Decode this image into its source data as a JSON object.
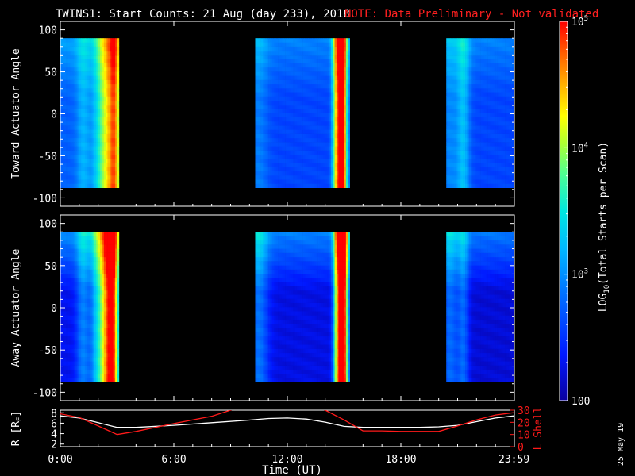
{
  "header": {
    "title": "TWINS1: Start Counts: 21 Aug (day 233), 2018",
    "note": "NOTE: Data Preliminary - Not validated"
  },
  "datestamp": "25 May 19",
  "colors": {
    "background": "#000000",
    "axes": "#ffffff",
    "note": "#ff2020",
    "r_line": "#ffffff",
    "l_line": "#ff1a1a"
  },
  "colorbar": {
    "label": "LOG10(Total Starts per Scan)",
    "label_main": "LOG",
    "label_sub": "10",
    "label_rest": "(Total Starts per Scan)",
    "range_log": [
      2,
      5
    ],
    "ticks": [
      {
        "log": 5,
        "label": "10",
        "exp": "5"
      },
      {
        "log": 4,
        "label": "10",
        "exp": "4"
      },
      {
        "log": 3,
        "label": "10",
        "exp": "3"
      },
      {
        "log": 2,
        "label": "100",
        "exp": ""
      }
    ],
    "stops": [
      {
        "t": 0.0,
        "c": "#0a00a0"
      },
      {
        "t": 0.12,
        "c": "#0018ff"
      },
      {
        "t": 0.28,
        "c": "#0070ff"
      },
      {
        "t": 0.4,
        "c": "#00b8ff"
      },
      {
        "t": 0.5,
        "c": "#00e8e0"
      },
      {
        "t": 0.6,
        "c": "#50ff90"
      },
      {
        "t": 0.68,
        "c": "#b0ff30"
      },
      {
        "t": 0.75,
        "c": "#ffff00"
      },
      {
        "t": 0.85,
        "c": "#ffa000"
      },
      {
        "t": 0.93,
        "c": "#ff5000"
      },
      {
        "t": 1.0,
        "c": "#ff0000"
      }
    ]
  },
  "xaxis": {
    "label": "Time (UT)",
    "range_hours": [
      0,
      24
    ],
    "ticks": [
      {
        "h": 0,
        "label": "0:00"
      },
      {
        "h": 6,
        "label": "6:00"
      },
      {
        "h": 12,
        "label": "12:00"
      },
      {
        "h": 18,
        "label": "18:00"
      },
      {
        "h": 23.983,
        "label": "23:59"
      }
    ]
  },
  "chart_data": [
    {
      "type": "heatmap",
      "ylabel": "Toward Actuator Angle",
      "ylim": [
        -110,
        110
      ],
      "yticks": [
        100,
        50,
        0,
        -50,
        -100
      ],
      "angle_range": [
        -88,
        90
      ],
      "value_units": "log10 counts",
      "segments": [
        {
          "t0": 0.0,
          "t1": 3.1,
          "base": 2.75,
          "bumps": [
            [
              1.2,
              0.35,
              0.4
            ],
            [
              2.1,
              0.5,
              0.5
            ],
            [
              2.6,
              0.5,
              1.25
            ],
            [
              2.9,
              0.3,
              1.05
            ]
          ]
        },
        {
          "t0": 10.3,
          "t1": 15.3,
          "base": 2.6,
          "bumps": [
            [
              10.5,
              0.5,
              0.3
            ],
            [
              14.55,
              0.2,
              1.35
            ],
            [
              14.8,
              0.2,
              1.9
            ],
            [
              15.0,
              0.2,
              1.6
            ]
          ]
        },
        {
          "t0": 20.4,
          "t1": 24.0,
          "base": 2.6,
          "bumps": [
            [
              20.6,
              0.5,
              0.35
            ],
            [
              21.3,
              0.35,
              0.6
            ]
          ]
        }
      ],
      "angle_gradient": 0.35
    },
    {
      "type": "heatmap",
      "ylabel": "Away Actuator Angle",
      "ylim": [
        -110,
        110
      ],
      "yticks": [
        100,
        50,
        0,
        -50,
        -100
      ],
      "angle_range": [
        -88,
        90
      ],
      "value_units": "log10 counts",
      "segments": [
        {
          "t0": 0.0,
          "t1": 3.1,
          "base": 2.3,
          "bumps": [
            [
              1.2,
              0.35,
              0.6
            ],
            [
              2.0,
              0.4,
              1.0
            ],
            [
              2.5,
              0.35,
              1.95
            ],
            [
              2.85,
              0.3,
              1.75
            ]
          ]
        },
        {
          "t0": 10.3,
          "t1": 15.3,
          "base": 2.25,
          "bumps": [
            [
              10.5,
              0.5,
              0.6
            ],
            [
              14.6,
              0.2,
              1.6
            ],
            [
              14.85,
              0.2,
              2.2
            ],
            [
              15.05,
              0.2,
              1.8
            ]
          ]
        },
        {
          "t0": 20.4,
          "t1": 24.0,
          "base": 2.2,
          "bumps": [
            [
              20.6,
              0.45,
              0.6
            ],
            [
              21.3,
              0.3,
              0.55
            ]
          ]
        }
      ],
      "angle_gradient": 0.7
    },
    {
      "type": "line",
      "ylabel": "R [RE]",
      "ylabel_main": "R [R",
      "ylabel_sub": "E",
      "ylabel_end": "]",
      "ylim": [
        1.5,
        8.5
      ],
      "yticks": [
        2,
        4,
        6,
        8
      ],
      "y2label": "L Shell",
      "y2lim": [
        0,
        30
      ],
      "y2ticks": [
        0,
        10,
        20,
        30
      ],
      "series": [
        {
          "name": "R",
          "axis": "left",
          "x": [
            0,
            1,
            2,
            3,
            4,
            6,
            8,
            10,
            11,
            12,
            13,
            14,
            15,
            16,
            18,
            19,
            20,
            21,
            22,
            23,
            23.983
          ],
          "y": [
            7.4,
            7.0,
            6.1,
            5.2,
            5.2,
            5.6,
            6.1,
            6.6,
            6.9,
            7.0,
            6.8,
            6.2,
            5.4,
            5.2,
            5.2,
            5.2,
            5.3,
            5.6,
            6.3,
            7.0,
            7.4
          ]
        },
        {
          "name": "L Shell",
          "axis": "right",
          "x": [
            0,
            1,
            2,
            3,
            4,
            6,
            8,
            9,
            10,
            13,
            14,
            15,
            16,
            17,
            18,
            19,
            20,
            21,
            22,
            23,
            23.983
          ],
          "y": [
            27,
            24,
            17,
            10,
            12.5,
            19,
            25,
            30,
            36,
            36,
            30,
            22,
            13,
            13,
            12.5,
            12.5,
            12.5,
            17,
            22,
            26,
            28
          ]
        }
      ]
    }
  ]
}
